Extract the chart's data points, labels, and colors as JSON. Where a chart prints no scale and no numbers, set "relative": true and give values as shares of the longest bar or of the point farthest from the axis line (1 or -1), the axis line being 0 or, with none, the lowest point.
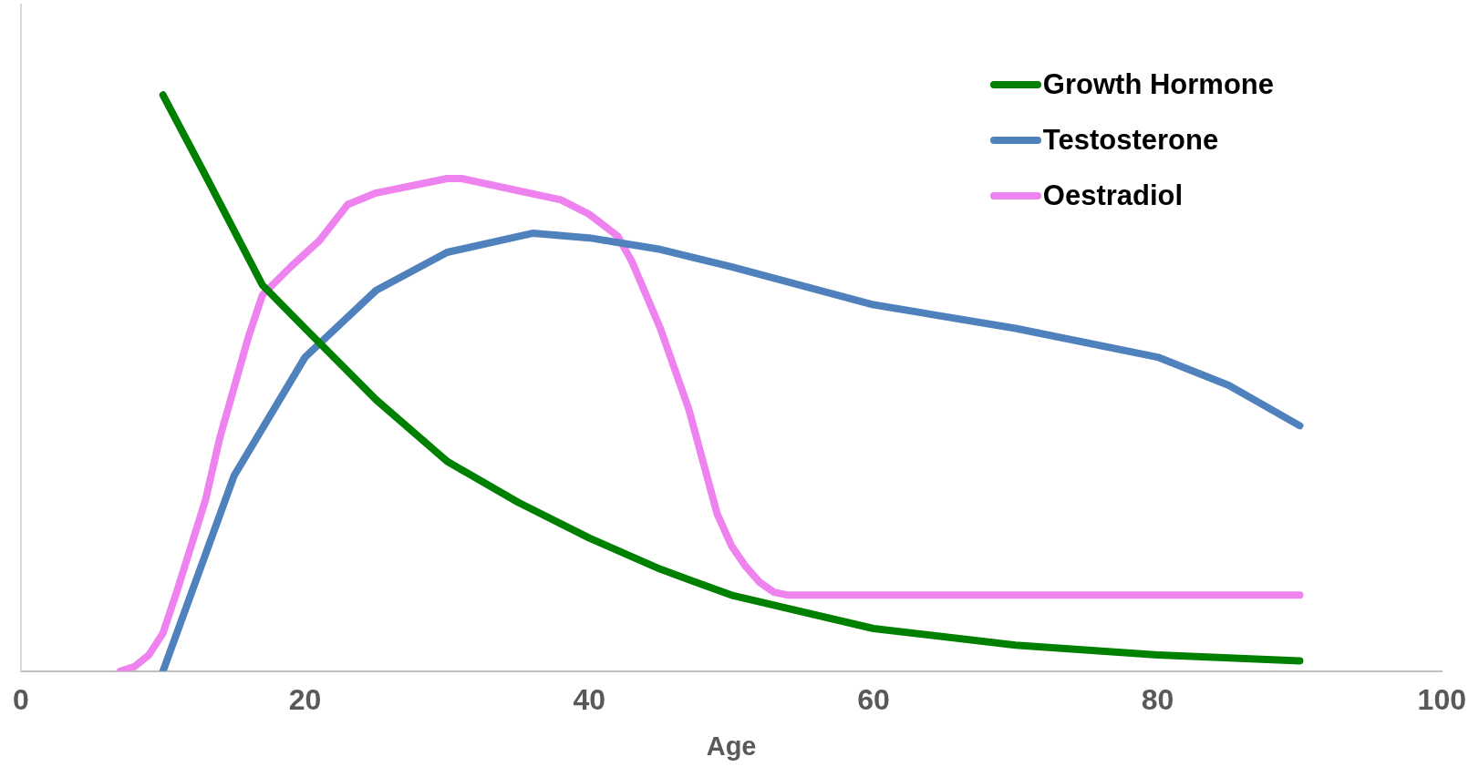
{
  "chart_data": {
    "type": "line",
    "relative": true,
    "xlabel": "Age",
    "xlim": [
      0,
      100
    ],
    "xticks": [
      0,
      20,
      40,
      60,
      80,
      100
    ],
    "tick_labels": "x",
    "legend": "top right",
    "grid": false,
    "marker": "none",
    "line_style": "solid",
    "series": [
      {
        "name": "Growth Hormone",
        "color": "#008000",
        "x": [
          10,
          13,
          17,
          20,
          25,
          30,
          35,
          40,
          45,
          50,
          60,
          70,
          80,
          90
        ],
        "values": [
          1,
          0.86,
          0.67,
          0.595,
          0.471,
          0.364,
          0.293,
          0.231,
          0.177,
          0.132,
          0.074,
          0.045,
          0.028,
          0.018
        ]
      },
      {
        "name": "Testosterone",
        "color": "#4f81bd",
        "x": [
          10,
          15,
          20,
          25,
          30,
          36,
          40,
          45,
          50,
          60,
          70,
          80,
          85,
          90
        ],
        "values": [
          0,
          0.339,
          0.545,
          0.661,
          0.727,
          0.76,
          0.752,
          0.732,
          0.702,
          0.636,
          0.595,
          0.545,
          0.496,
          0.426
        ]
      },
      {
        "name": "Oestradiol",
        "color": "#ee82ee",
        "x": [
          7,
          8,
          9,
          10,
          11,
          13,
          14,
          16,
          17,
          19,
          21,
          23,
          25,
          30,
          31,
          38,
          40,
          42,
          43,
          45,
          47,
          49,
          50,
          51,
          52,
          53,
          54,
          90
        ],
        "values": [
          0,
          0.008,
          0.028,
          0.066,
          0.14,
          0.298,
          0.405,
          0.579,
          0.653,
          0.702,
          0.747,
          0.81,
          0.83,
          0.855,
          0.855,
          0.818,
          0.793,
          0.755,
          0.711,
          0.595,
          0.455,
          0.273,
          0.218,
          0.182,
          0.154,
          0.137,
          0.132,
          0.132
        ]
      }
    ]
  }
}
